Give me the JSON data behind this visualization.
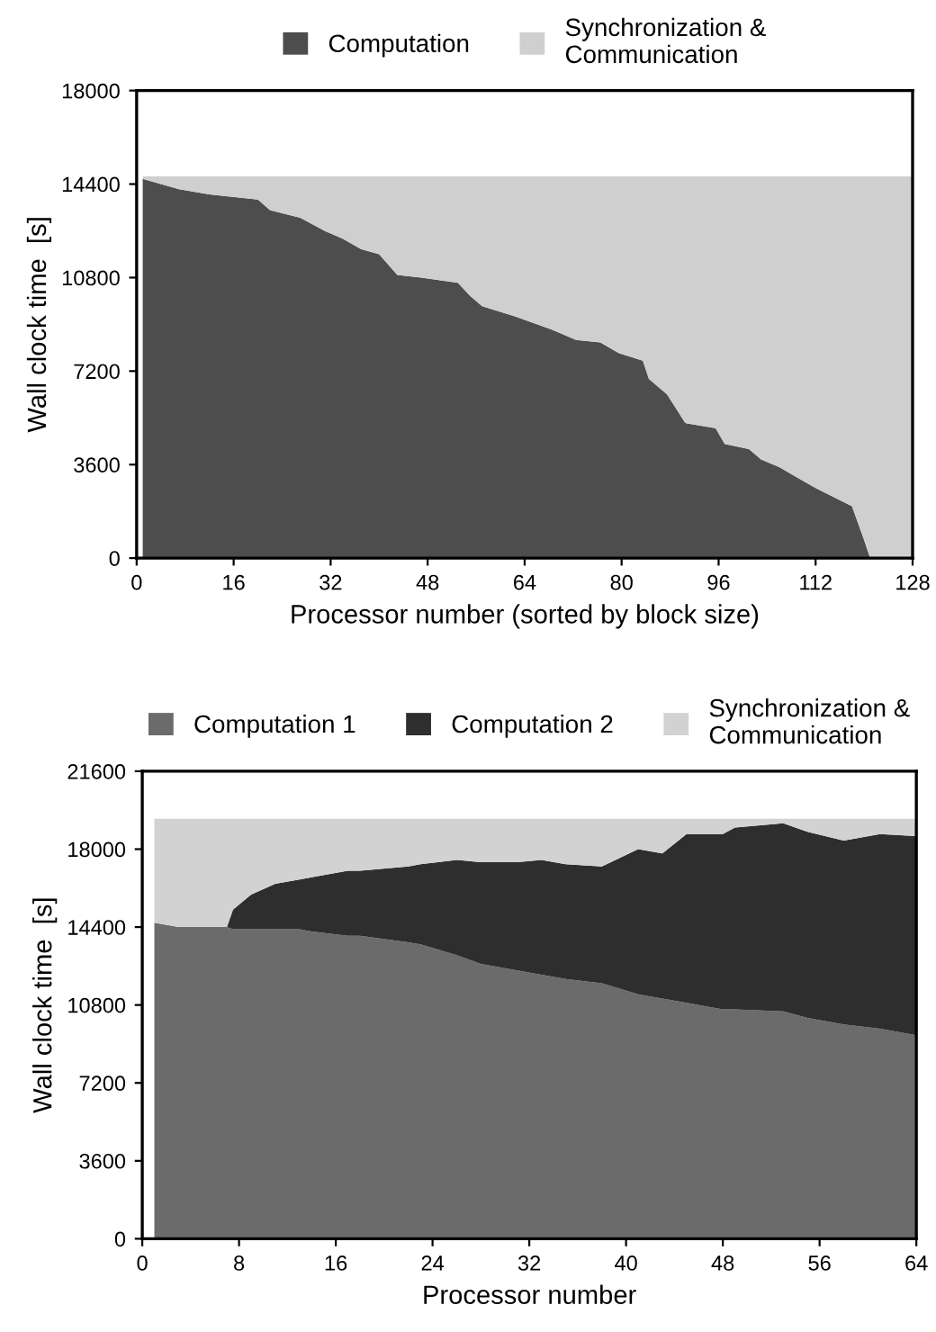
{
  "chart_data": [
    {
      "type": "area",
      "stacked": true,
      "xlabel": "Processor number (sorted by block size)",
      "ylabel": "Wall clock time  [s]",
      "x": [
        1,
        7,
        12,
        20,
        22,
        27,
        31,
        34,
        37,
        40,
        43,
        47,
        53,
        55,
        57,
        62.5,
        68.5,
        72.5,
        76.5,
        79.5,
        83.5,
        84.5,
        87.5,
        90.5,
        95.5,
        97,
        101,
        103,
        106,
        109,
        112,
        118,
        120,
        121,
        128
      ],
      "series": [
        {
          "name": "Computation",
          "color": "#4d4d4d",
          "values": [
            14600,
            14200,
            14000,
            13800,
            13400,
            13100,
            12600,
            12300,
            11900,
            11700,
            10900,
            10800,
            10600,
            10100,
            9700,
            9300,
            8800,
            8400,
            8300,
            7900,
            7600,
            6900,
            6300,
            5200,
            5000,
            4400,
            4200,
            3800,
            3500,
            3100,
            2700,
            2000,
            700,
            0,
            0
          ]
        },
        {
          "name": "Synchronization &\nCommunication",
          "color": "#cfcfcf",
          "values": [
            100,
            500,
            700,
            900,
            1300,
            1600,
            2100,
            2400,
            2800,
            3000,
            3800,
            3900,
            4100,
            4600,
            5000,
            5400,
            5900,
            6300,
            6400,
            6800,
            7100,
            7800,
            8400,
            9500,
            9700,
            10300,
            10500,
            10900,
            11200,
            11600,
            12000,
            12700,
            14000,
            14700,
            14700
          ]
        }
      ],
      "xlim": [
        0,
        128
      ],
      "xticks": [
        0,
        16,
        32,
        48,
        64,
        80,
        96,
        112,
        128
      ],
      "ylim": [
        0,
        18000
      ],
      "yticks": [
        0,
        3600,
        7200,
        10800,
        14400,
        18000
      ],
      "legend": "top",
      "grid": false
    },
    {
      "type": "area",
      "stacked": true,
      "xlabel": "Processor number",
      "ylabel": "Wall clock time  [s]",
      "x": [
        1,
        3,
        7,
        7.5,
        9,
        11,
        13,
        14,
        17,
        18,
        22,
        23,
        26,
        28,
        31,
        33,
        35,
        38,
        41,
        43,
        45,
        48,
        49,
        53,
        55,
        58,
        61,
        64
      ],
      "series": [
        {
          "name": "Computation 1",
          "color": "#6b6b6b",
          "values": [
            14600,
            14400,
            14400,
            14300,
            14300,
            14300,
            14300,
            14200,
            14000,
            14000,
            13700,
            13600,
            13100,
            12700,
            12400,
            12200,
            12000,
            11800,
            11300,
            11100,
            10900,
            10600,
            10600,
            10500,
            10200,
            9900,
            9700,
            9400
          ]
        },
        {
          "name": "Computation 2",
          "color": "#2e2e2e",
          "values": [
            0,
            0,
            0,
            900,
            1600,
            2100,
            2300,
            2500,
            3000,
            3000,
            3500,
            3700,
            4400,
            4700,
            5000,
            5300,
            5300,
            5400,
            6700,
            6700,
            7800,
            8100,
            8400,
            8700,
            8600,
            8500,
            9000,
            9200
          ]
        },
        {
          "name": "Synchronization &\nCommunication",
          "color": "#d2d2d2",
          "values": [
            4800,
            5000,
            5000,
            4200,
            3500,
            3000,
            2800,
            2700,
            2400,
            2400,
            2200,
            2100,
            1900,
            2000,
            2000,
            1900,
            2100,
            2200,
            1400,
            1600,
            700,
            700,
            400,
            200,
            600,
            1000,
            700,
            800
          ]
        }
      ],
      "xlim": [
        0,
        64
      ],
      "xticks": [
        0,
        8,
        16,
        24,
        32,
        40,
        48,
        56,
        64
      ],
      "ylim": [
        0,
        21600
      ],
      "yticks": [
        0,
        3600,
        7200,
        10800,
        14400,
        18000,
        21600
      ],
      "legend": "top",
      "grid": false
    }
  ]
}
